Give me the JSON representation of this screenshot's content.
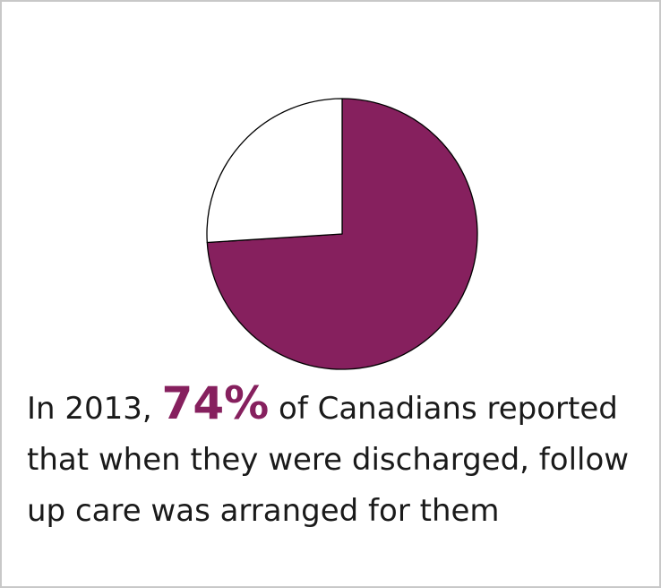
{
  "colors": {
    "accent": "#86205e",
    "remainder": "#ffffff",
    "outline": "#000000"
  },
  "chart_data": {
    "type": "pie",
    "title": "",
    "slices": [
      {
        "value": 74,
        "color": "#86205e"
      },
      {
        "value": 26,
        "color": "#ffffff"
      }
    ]
  },
  "caption": {
    "prefix": "In 2013, ",
    "highlight": "74%",
    "suffix": " of Canadians reported that when they were discharged, follow up care was arranged for them"
  }
}
